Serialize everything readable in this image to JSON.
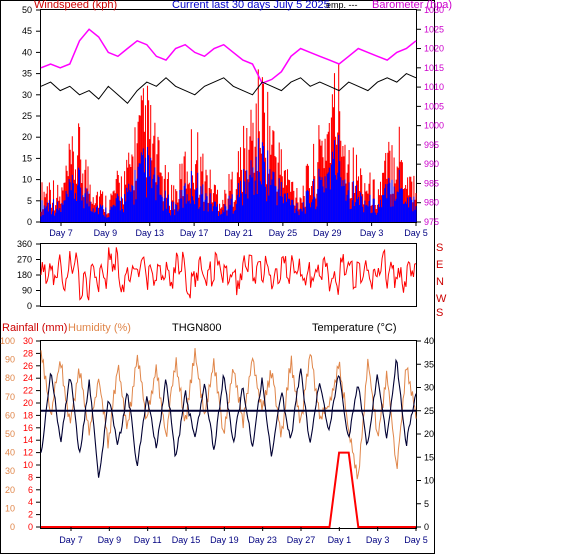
{
  "header": {
    "windspeed_label": "Windspeed (kph)",
    "current_label": "Current last 30 days July 5 2025",
    "temp_fragment": "emp. ---",
    "barometer_label": "Barometer (hpa)"
  },
  "lower_header": {
    "rainfall_label": "Rainfall (mm)",
    "humidity_label": "Humidity (%)",
    "sensor_label": "THGN800",
    "temperature_label": "Temperature (°C)"
  },
  "direction_labels": [
    "S",
    "E",
    "N",
    "W",
    "S"
  ],
  "colors": {
    "wind": "#ff0000",
    "gust": "#0000ff",
    "barometer": "#ff00ff",
    "temperature_line": "#000000",
    "humidity": "#e0864a",
    "temperature": "#000033",
    "rain": "#ff0000",
    "frame": "#000000",
    "date_axis": "#000080"
  },
  "chart_data": [
    {
      "type": "line",
      "title": "Current last 30 days July 5 2025",
      "x_ticks": [
        "Day 7",
        "Day 9",
        "Day 13",
        "Day 17",
        "Day 21",
        "Day 25",
        "Day 29",
        "Day 3",
        "Day 5"
      ],
      "series": [
        {
          "name": "Windspeed (kph)",
          "axis": "left",
          "ylim": [
            0,
            50
          ],
          "ticks": [
            0,
            5,
            10,
            15,
            20,
            25,
            30,
            35,
            40,
            45,
            50
          ],
          "values": [
            6,
            8,
            5,
            12,
            15,
            9,
            6,
            4,
            8,
            10,
            18,
            22,
            14,
            8,
            6,
            12,
            16,
            10,
            7,
            5,
            9,
            14,
            20,
            25,
            18,
            12,
            8,
            6,
            10,
            15,
            22,
            26,
            14,
            10,
            8,
            6,
            12,
            18,
            10,
            8
          ]
        },
        {
          "name": "Barometer (hpa)",
          "axis": "right",
          "ylim": [
            975,
            1030
          ],
          "ticks": [
            975,
            980,
            985,
            990,
            995,
            1000,
            1005,
            1010,
            1015,
            1020,
            1025,
            1030
          ],
          "values": [
            1015,
            1016,
            1015,
            1016,
            1022,
            1025,
            1023,
            1019,
            1018,
            1020,
            1022,
            1021,
            1018,
            1017,
            1020,
            1021,
            1019,
            1018,
            1020,
            1021,
            1019,
            1017,
            1016,
            1011,
            1012,
            1014,
            1018,
            1020,
            1019,
            1018,
            1017,
            1016,
            1018,
            1020,
            1019,
            1018,
            1017,
            1019,
            1020,
            1022
          ]
        },
        {
          "name": "Temperature",
          "axis": "left",
          "values": [
            32,
            33,
            31,
            32,
            30,
            31,
            29,
            32,
            30,
            28,
            31,
            33,
            32,
            34,
            32,
            31,
            30,
            32,
            33,
            34,
            32,
            31,
            30,
            33,
            32,
            31,
            33,
            34,
            32,
            33,
            32,
            31,
            33,
            32,
            31,
            33,
            34,
            33,
            35,
            34
          ]
        }
      ]
    },
    {
      "type": "line",
      "series": [
        {
          "name": "Wind direction",
          "ylim": [
            0,
            360
          ],
          "ticks": [
            0,
            90,
            180,
            270,
            360
          ],
          "values": [
            180,
            210,
            150,
            240,
            120,
            200,
            170,
            260,
            140,
            190,
            230,
            160,
            210,
            180,
            250,
            130,
            200,
            170,
            220,
            190,
            150,
            240,
            180,
            210,
            160,
            200,
            230,
            170,
            190,
            210,
            150,
            220,
            180,
            200,
            170,
            240,
            190,
            160,
            210,
            180
          ]
        }
      ]
    },
    {
      "type": "line",
      "x_ticks": [
        "Day 7",
        "Day 9",
        "Day 11",
        "Day 15",
        "Day 19",
        "Day 23",
        "Day 27",
        "Day 1",
        "Day 3",
        "Day 5"
      ],
      "series": [
        {
          "name": "Rainfall (mm)",
          "axis": "left-inner",
          "ylim": [
            0,
            30
          ],
          "ticks": [
            0,
            2,
            4,
            6,
            8,
            10,
            12,
            14,
            16,
            18,
            20,
            22,
            24,
            26,
            28,
            30
          ],
          "values": [
            0,
            0,
            0,
            0,
            0,
            0,
            0,
            0,
            0,
            0,
            0,
            0,
            0,
            0,
            0,
            0,
            0,
            0,
            0,
            0,
            0,
            0,
            0,
            0,
            0,
            0,
            0,
            0,
            0,
            0,
            0,
            12,
            12,
            0,
            0,
            0,
            0,
            0,
            0,
            0
          ]
        },
        {
          "name": "Humidity (%)",
          "axis": "left-outer",
          "ylim": [
            0,
            100
          ],
          "ticks": [
            0,
            10,
            20,
            30,
            40,
            50,
            60,
            70,
            80,
            90,
            100
          ],
          "values": [
            95,
            60,
            90,
            55,
            85,
            50,
            80,
            45,
            88,
            52,
            92,
            58,
            85,
            48,
            90,
            55,
            94,
            60,
            88,
            50,
            86,
            56,
            92,
            62,
            84,
            48,
            90,
            54,
            95,
            58,
            66,
            88,
            52,
            25,
            90,
            48,
            82,
            30,
            88,
            60
          ]
        },
        {
          "name": "Temperature (°C)",
          "axis": "right",
          "ylim": [
            0,
            40
          ],
          "ticks": [
            0,
            5,
            10,
            15,
            20,
            25,
            30,
            35,
            40
          ],
          "values": [
            16,
            34,
            18,
            33,
            15,
            32,
            10,
            28,
            17,
            30,
            12,
            29,
            16,
            33,
            14,
            30,
            18,
            32,
            15,
            34,
            17,
            31,
            16,
            33,
            14,
            30,
            18,
            35,
            17,
            32,
            20,
            34,
            18,
            31,
            17,
            33,
            19,
            36,
            18,
            28
          ]
        }
      ],
      "reference_line": 25
    }
  ]
}
